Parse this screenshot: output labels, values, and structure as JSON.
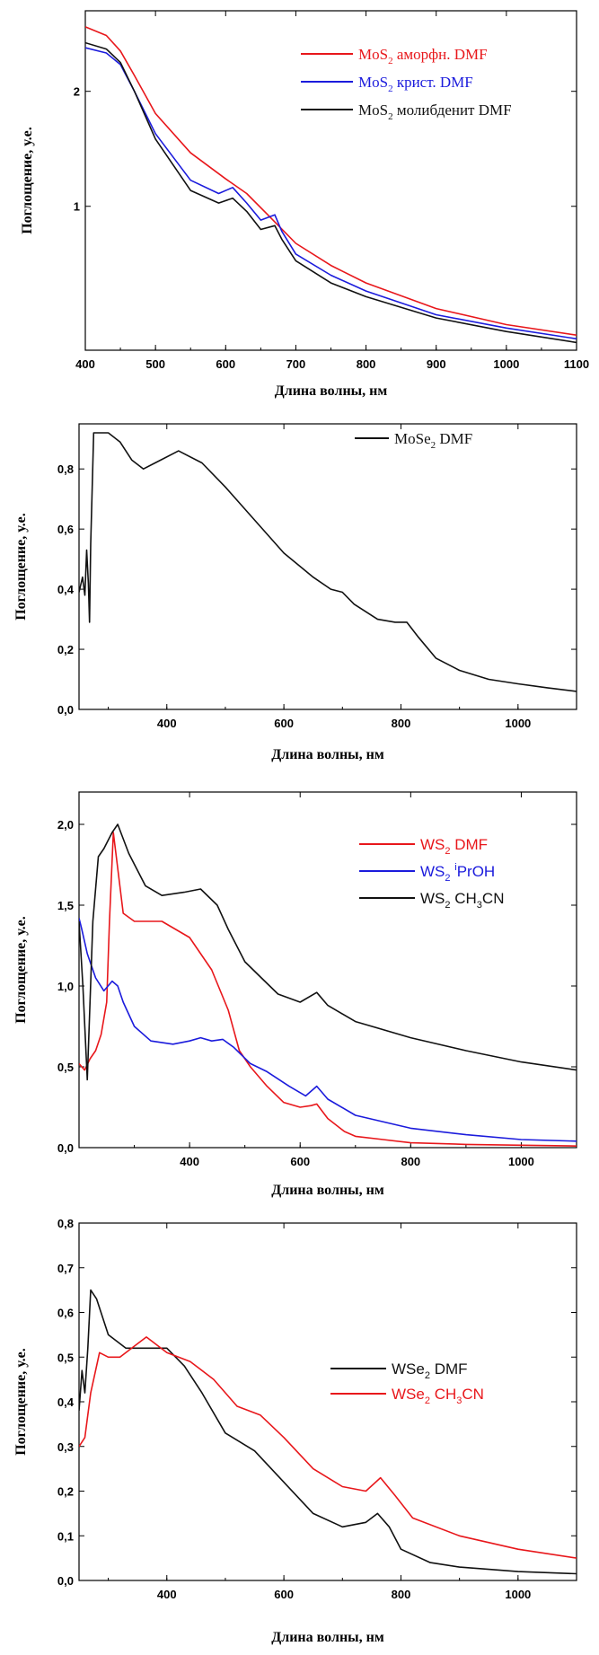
{
  "chart_data": [
    {
      "type": "line",
      "xlabel": "Длина волны, нм",
      "ylabel": "Поглощение, у.е.",
      "xlim": [
        400,
        1100
      ],
      "ylim": [
        0.42,
        3.25
      ],
      "ylog": true,
      "xticks": [
        "400",
        "500",
        "600",
        "700",
        "800",
        "900",
        "1000",
        "1100"
      ],
      "yticks": [
        "1",
        "2"
      ],
      "legend_position": "top-right",
      "series": [
        {
          "name": "MoS2 аморфн.   DMF",
          "color": "#e8171b",
          "x": [
            400,
            430,
            450,
            470,
            500,
            550,
            600,
            630,
            660,
            700,
            750,
            800,
            900,
            1000,
            1100
          ],
          "y": [
            2.95,
            2.8,
            2.55,
            2.2,
            1.75,
            1.38,
            1.18,
            1.08,
            0.95,
            0.8,
            0.7,
            0.63,
            0.54,
            0.49,
            0.46
          ]
        },
        {
          "name": "MoS2 крист.   DMF",
          "color": "#1b1bdc",
          "x": [
            400,
            430,
            450,
            470,
            500,
            550,
            590,
            610,
            630,
            650,
            670,
            680,
            700,
            750,
            800,
            900,
            1000,
            1100
          ],
          "y": [
            2.6,
            2.52,
            2.35,
            2.0,
            1.55,
            1.17,
            1.08,
            1.12,
            1.02,
            0.92,
            0.95,
            0.86,
            0.75,
            0.66,
            0.6,
            0.52,
            0.48,
            0.45
          ]
        },
        {
          "name": "MoS2 молибденит  DMF",
          "color": "#111111",
          "x": [
            400,
            430,
            450,
            470,
            500,
            550,
            590,
            610,
            630,
            650,
            670,
            680,
            700,
            750,
            800,
            900,
            1000,
            1100
          ],
          "y": [
            2.68,
            2.58,
            2.38,
            2.0,
            1.5,
            1.1,
            1.02,
            1.05,
            0.97,
            0.87,
            0.89,
            0.82,
            0.72,
            0.63,
            0.58,
            0.51,
            0.47,
            0.44
          ]
        }
      ],
      "legend": [
        {
          "base": "MoS",
          "sub": "2",
          "text": " аморфн.   DMF",
          "color": "#e8171b"
        },
        {
          "base": "MoS",
          "sub": "2",
          "text": " крист.   DMF",
          "color": "#1b1bdc"
        },
        {
          "base": "MoS",
          "sub": "2",
          "text": " молибденит  DMF",
          "color": "#111111"
        }
      ]
    },
    {
      "type": "line",
      "xlabel": "Длина волны, нм",
      "ylabel": "Поглощение, у.е.",
      "xlim": [
        250,
        1100
      ],
      "ylim": [
        0.0,
        0.95
      ],
      "xticks": [
        "400",
        "600",
        "800",
        "1000"
      ],
      "yticks": [
        "0,0",
        "0,2",
        "0,4",
        "0,6",
        "0,8"
      ],
      "legend_position": "top-right",
      "series": [
        {
          "name": "MoSe2  DMF",
          "color": "#111111",
          "x": [
            250,
            256,
            260,
            263,
            266,
            268,
            270,
            275,
            300,
            320,
            340,
            360,
            380,
            420,
            460,
            500,
            550,
            600,
            650,
            680,
            700,
            720,
            760,
            790,
            810,
            830,
            860,
            900,
            950,
            1000,
            1050,
            1100
          ],
          "y": [
            0.39,
            0.44,
            0.38,
            0.53,
            0.42,
            0.29,
            0.55,
            0.92,
            0.92,
            0.89,
            0.83,
            0.8,
            0.82,
            0.86,
            0.82,
            0.74,
            0.63,
            0.52,
            0.44,
            0.4,
            0.39,
            0.35,
            0.3,
            0.29,
            0.29,
            0.24,
            0.17,
            0.13,
            0.1,
            0.085,
            0.072,
            0.06
          ]
        }
      ],
      "legend": [
        {
          "base": "MoSe",
          "sub": "2",
          "text": "  DMF",
          "color": "#111111"
        }
      ]
    },
    {
      "type": "line",
      "xlabel": "Длина волны, нм",
      "ylabel": "Поглощение, у.е.",
      "xlim": [
        200,
        1100
      ],
      "ylim": [
        0.0,
        2.2
      ],
      "xticks": [
        "400",
        "600",
        "800",
        "1000"
      ],
      "yticks": [
        "0,0",
        "0,5",
        "1,0",
        "1,5",
        "2,0"
      ],
      "legend_position": "top-right",
      "series": [
        {
          "name": "WS2  DMF",
          "color": "#e8171b",
          "x": [
            200,
            210,
            220,
            230,
            240,
            250,
            255,
            262,
            280,
            300,
            350,
            400,
            440,
            470,
            490,
            510,
            540,
            570,
            600,
            620,
            630,
            650,
            680,
            700,
            750,
            800,
            900,
            1000,
            1100
          ],
          "y": [
            0.52,
            0.48,
            0.55,
            0.6,
            0.7,
            0.9,
            1.4,
            1.95,
            1.45,
            1.4,
            1.4,
            1.3,
            1.1,
            0.85,
            0.6,
            0.5,
            0.38,
            0.28,
            0.25,
            0.26,
            0.27,
            0.18,
            0.1,
            0.07,
            0.05,
            0.03,
            0.02,
            0.015,
            0.01
          ]
        },
        {
          "name": "WS2  iPrOH",
          "color": "#1b1bdc",
          "x": [
            200,
            205,
            215,
            230,
            245,
            260,
            270,
            280,
            300,
            330,
            370,
            400,
            420,
            440,
            460,
            480,
            510,
            540,
            580,
            610,
            630,
            650,
            700,
            800,
            900,
            1000,
            1100
          ],
          "y": [
            1.42,
            1.35,
            1.2,
            1.05,
            0.97,
            1.03,
            1.0,
            0.9,
            0.75,
            0.66,
            0.64,
            0.66,
            0.68,
            0.66,
            0.67,
            0.62,
            0.52,
            0.47,
            0.38,
            0.32,
            0.38,
            0.3,
            0.2,
            0.12,
            0.08,
            0.05,
            0.04
          ]
        },
        {
          "name": "WS2  CH3CN",
          "color": "#111111",
          "x": [
            200,
            207,
            215,
            225,
            235,
            245,
            260,
            270,
            290,
            320,
            350,
            390,
            420,
            450,
            470,
            500,
            530,
            560,
            600,
            630,
            650,
            700,
            800,
            900,
            1000,
            1100
          ],
          "y": [
            1.4,
            1.0,
            0.42,
            1.4,
            1.8,
            1.85,
            1.95,
            2.0,
            1.82,
            1.62,
            1.56,
            1.58,
            1.6,
            1.5,
            1.35,
            1.15,
            1.05,
            0.95,
            0.9,
            0.96,
            0.88,
            0.78,
            0.68,
            0.6,
            0.53,
            0.48
          ]
        }
      ],
      "legend": [
        {
          "base": "WS",
          "sub": "2",
          "text": "  DMF",
          "color": "#e8171b"
        },
        {
          "base": "WS",
          "sub": "2",
          "text": "  ",
          "sup": "i",
          "text2": "PrOH",
          "color": "#1b1bdc"
        },
        {
          "base": "WS",
          "sub": "2",
          "text": "  CH",
          "sub2": "3",
          "text2": "CN",
          "color": "#111111"
        }
      ]
    },
    {
      "type": "line",
      "xlabel": "Длина волны, нм",
      "ylabel": "Поглощение, у.е.",
      "xlim": [
        250,
        1100
      ],
      "ylim": [
        0.0,
        0.8
      ],
      "xticks": [
        "400",
        "600",
        "800",
        "1000"
      ],
      "yticks": [
        "0,0",
        "0,1",
        "0,2",
        "0,3",
        "0,4",
        "0,5",
        "0,6",
        "0,7",
        "0,8"
      ],
      "legend_position": "right",
      "series": [
        {
          "name": "WSe2  DMF",
          "color": "#111111",
          "x": [
            250,
            255,
            260,
            265,
            270,
            280,
            300,
            330,
            360,
            400,
            430,
            460,
            500,
            550,
            600,
            650,
            700,
            740,
            760,
            780,
            800,
            850,
            900,
            1000,
            1100
          ],
          "y": [
            0.38,
            0.47,
            0.42,
            0.52,
            0.65,
            0.63,
            0.55,
            0.52,
            0.52,
            0.52,
            0.48,
            0.42,
            0.33,
            0.29,
            0.22,
            0.15,
            0.12,
            0.13,
            0.15,
            0.12,
            0.07,
            0.04,
            0.03,
            0.02,
            0.015
          ]
        },
        {
          "name": "WSe2  CH3CN",
          "color": "#e8171b",
          "x": [
            250,
            260,
            270,
            285,
            300,
            320,
            340,
            365,
            400,
            440,
            480,
            520,
            560,
            600,
            650,
            700,
            740,
            765,
            790,
            820,
            900,
            1000,
            1100
          ],
          "y": [
            0.3,
            0.32,
            0.42,
            0.51,
            0.5,
            0.5,
            0.52,
            0.545,
            0.51,
            0.49,
            0.45,
            0.39,
            0.37,
            0.32,
            0.25,
            0.21,
            0.2,
            0.23,
            0.19,
            0.14,
            0.1,
            0.07,
            0.05
          ]
        }
      ],
      "legend": [
        {
          "base": "WSe",
          "sub": "2",
          "text": "  DMF",
          "color": "#111111"
        },
        {
          "base": "WSe",
          "sub": "2",
          "text": "  CH",
          "sub2": "3",
          "text2": "CN",
          "color": "#e8171b"
        }
      ]
    }
  ]
}
